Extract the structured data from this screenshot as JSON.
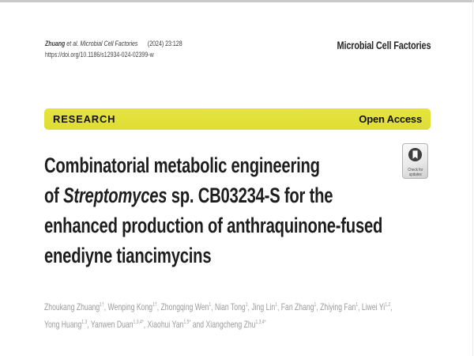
{
  "page": {
    "header": {
      "citation_author": "Zhuang",
      "citation_etal_journal": " et al. Microbial Cell Factories",
      "citation_ref": "(2024) 23:128",
      "doi": "https://doi.org/10.1186/s12934-024-02399-w",
      "journal_name": "Microbial Cell Factories"
    },
    "banner": {
      "left_label": "RESEARCH",
      "right_label": "Open Access",
      "background": "#e6e43e",
      "text_color": "#111111"
    },
    "badge": {
      "line1": "Check for",
      "line2": "updates",
      "icon": "bookmark-icon",
      "circle_color": "#3f3f3f"
    },
    "title": {
      "lines": [
        [
          {
            "text": "Combinatorial metabolic engineering"
          }
        ],
        [
          {
            "text": "of "
          },
          {
            "text": "Streptomyces",
            "italic": true
          },
          {
            "text": " sp. CB03234-S for the"
          }
        ],
        [
          {
            "text": "enhanced production of anthraquinone-fused"
          }
        ],
        [
          {
            "text": "enediyne tiancimycins"
          }
        ]
      ]
    },
    "authors": {
      "lines": [
        [
          {
            "name": "Zhoukang Zhuang",
            "sup": "1†",
            "sep": ", "
          },
          {
            "name": "Wenping Kong",
            "sup": "1†",
            "sep": ", "
          },
          {
            "name": "Zhongqing Wen",
            "sup": "1",
            "sep": ", "
          },
          {
            "name": "Nian Tong",
            "sup": "1",
            "sep": ", "
          },
          {
            "name": "Jing Lin",
            "sup": "1",
            "sep": ", "
          },
          {
            "name": "Fan Zhang",
            "sup": "1",
            "sep": ", "
          },
          {
            "name": "Zhiying Fan",
            "sup": "1",
            "sep": ", "
          },
          {
            "name": "Liwei Yi",
            "sup": "1,2",
            "sep": ","
          }
        ],
        [
          {
            "name": "Yong Huang",
            "sup": "1,3",
            "sep": ", "
          },
          {
            "name": "Yanwen Duan",
            "sup": "1,3,4*",
            "sep": ", "
          },
          {
            "name": "Xiaohui Yan",
            "sup": "1,5*",
            "sep": " and "
          },
          {
            "name": "Xiangcheng Zhu",
            "sup": "1,3,4*",
            "sep": ""
          }
        ]
      ]
    }
  }
}
